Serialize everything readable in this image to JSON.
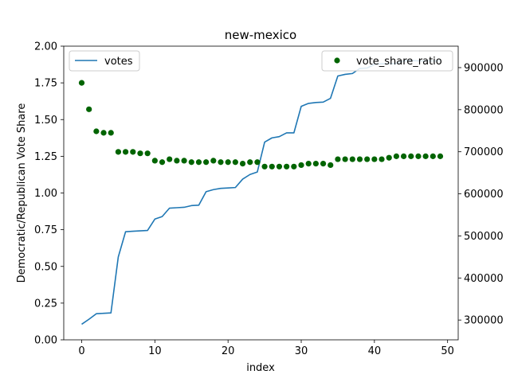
{
  "chart_data": {
    "type": "line+scatter",
    "title": "new-mexico",
    "xlabel": "index",
    "ylabel": "Democratic/Republican Vote Share",
    "xlim": [
      -2.45,
      51.45
    ],
    "x_ticks": [
      0,
      10,
      20,
      30,
      40,
      50
    ],
    "left_axis": {
      "ylim": [
        0,
        2.0
      ],
      "ticks": [
        "0.00",
        "0.25",
        "0.50",
        "0.75",
        "1.00",
        "1.25",
        "1.50",
        "1.75",
        "2.00"
      ]
    },
    "right_axis": {
      "ylim": [
        253000,
        951000
      ],
      "ticks": [
        "300000",
        "400000",
        "500000",
        "600000",
        "700000",
        "800000",
        "900000"
      ]
    },
    "grid": false,
    "legend_left": {
      "placement": "upper-left",
      "label": "votes"
    },
    "legend_right": {
      "placement": "upper-right",
      "label": "vote_share_ratio"
    },
    "colors": {
      "votes": "#1f77b4",
      "vote_share_ratio": "#006400"
    },
    "series": [
      {
        "name": "votes",
        "axis": "right",
        "kind": "line",
        "x": [
          0,
          1,
          2,
          3,
          4,
          5,
          6,
          7,
          8,
          9,
          10,
          11,
          12,
          13,
          14,
          15,
          16,
          17,
          18,
          19,
          20,
          21,
          22,
          23,
          24,
          25,
          26,
          27,
          28,
          29,
          30,
          31,
          32,
          33,
          34,
          35,
          36,
          37,
          38,
          39,
          40,
          41,
          42,
          43,
          44,
          45,
          46,
          47,
          48,
          49
        ],
        "values": [
          290000,
          302000,
          315000,
          316000,
          317000,
          450000,
          510000,
          511000,
          512000,
          513000,
          540000,
          546000,
          566000,
          567000,
          568000,
          572000,
          573000,
          605000,
          610000,
          613000,
          614000,
          615000,
          635000,
          646000,
          652000,
          723000,
          733000,
          736000,
          745000,
          745000,
          808000,
          815000,
          817000,
          818000,
          827000,
          880000,
          884000,
          886000,
          898000,
          899000,
          908000,
          909000,
          909000,
          910000,
          916000,
          917000,
          916000,
          916000,
          916000,
          916000
        ]
      },
      {
        "name": "vote_share_ratio",
        "axis": "left",
        "kind": "scatter",
        "x": [
          0,
          1,
          2,
          3,
          4,
          5,
          6,
          7,
          8,
          9,
          10,
          11,
          12,
          13,
          14,
          15,
          16,
          17,
          18,
          19,
          20,
          21,
          22,
          23,
          24,
          25,
          26,
          27,
          28,
          29,
          30,
          31,
          32,
          33,
          34,
          35,
          36,
          37,
          38,
          39,
          40,
          41,
          42,
          43,
          44,
          45,
          46,
          47,
          48,
          49
        ],
        "values": [
          1.75,
          1.57,
          1.42,
          1.41,
          1.41,
          1.28,
          1.28,
          1.28,
          1.27,
          1.27,
          1.22,
          1.21,
          1.23,
          1.22,
          1.22,
          1.21,
          1.21,
          1.21,
          1.22,
          1.21,
          1.21,
          1.21,
          1.2,
          1.21,
          1.21,
          1.18,
          1.18,
          1.18,
          1.18,
          1.18,
          1.19,
          1.2,
          1.2,
          1.2,
          1.19,
          1.23,
          1.23,
          1.23,
          1.23,
          1.23,
          1.23,
          1.23,
          1.24,
          1.25,
          1.25,
          1.25,
          1.25,
          1.25,
          1.25,
          1.25
        ]
      }
    ]
  }
}
